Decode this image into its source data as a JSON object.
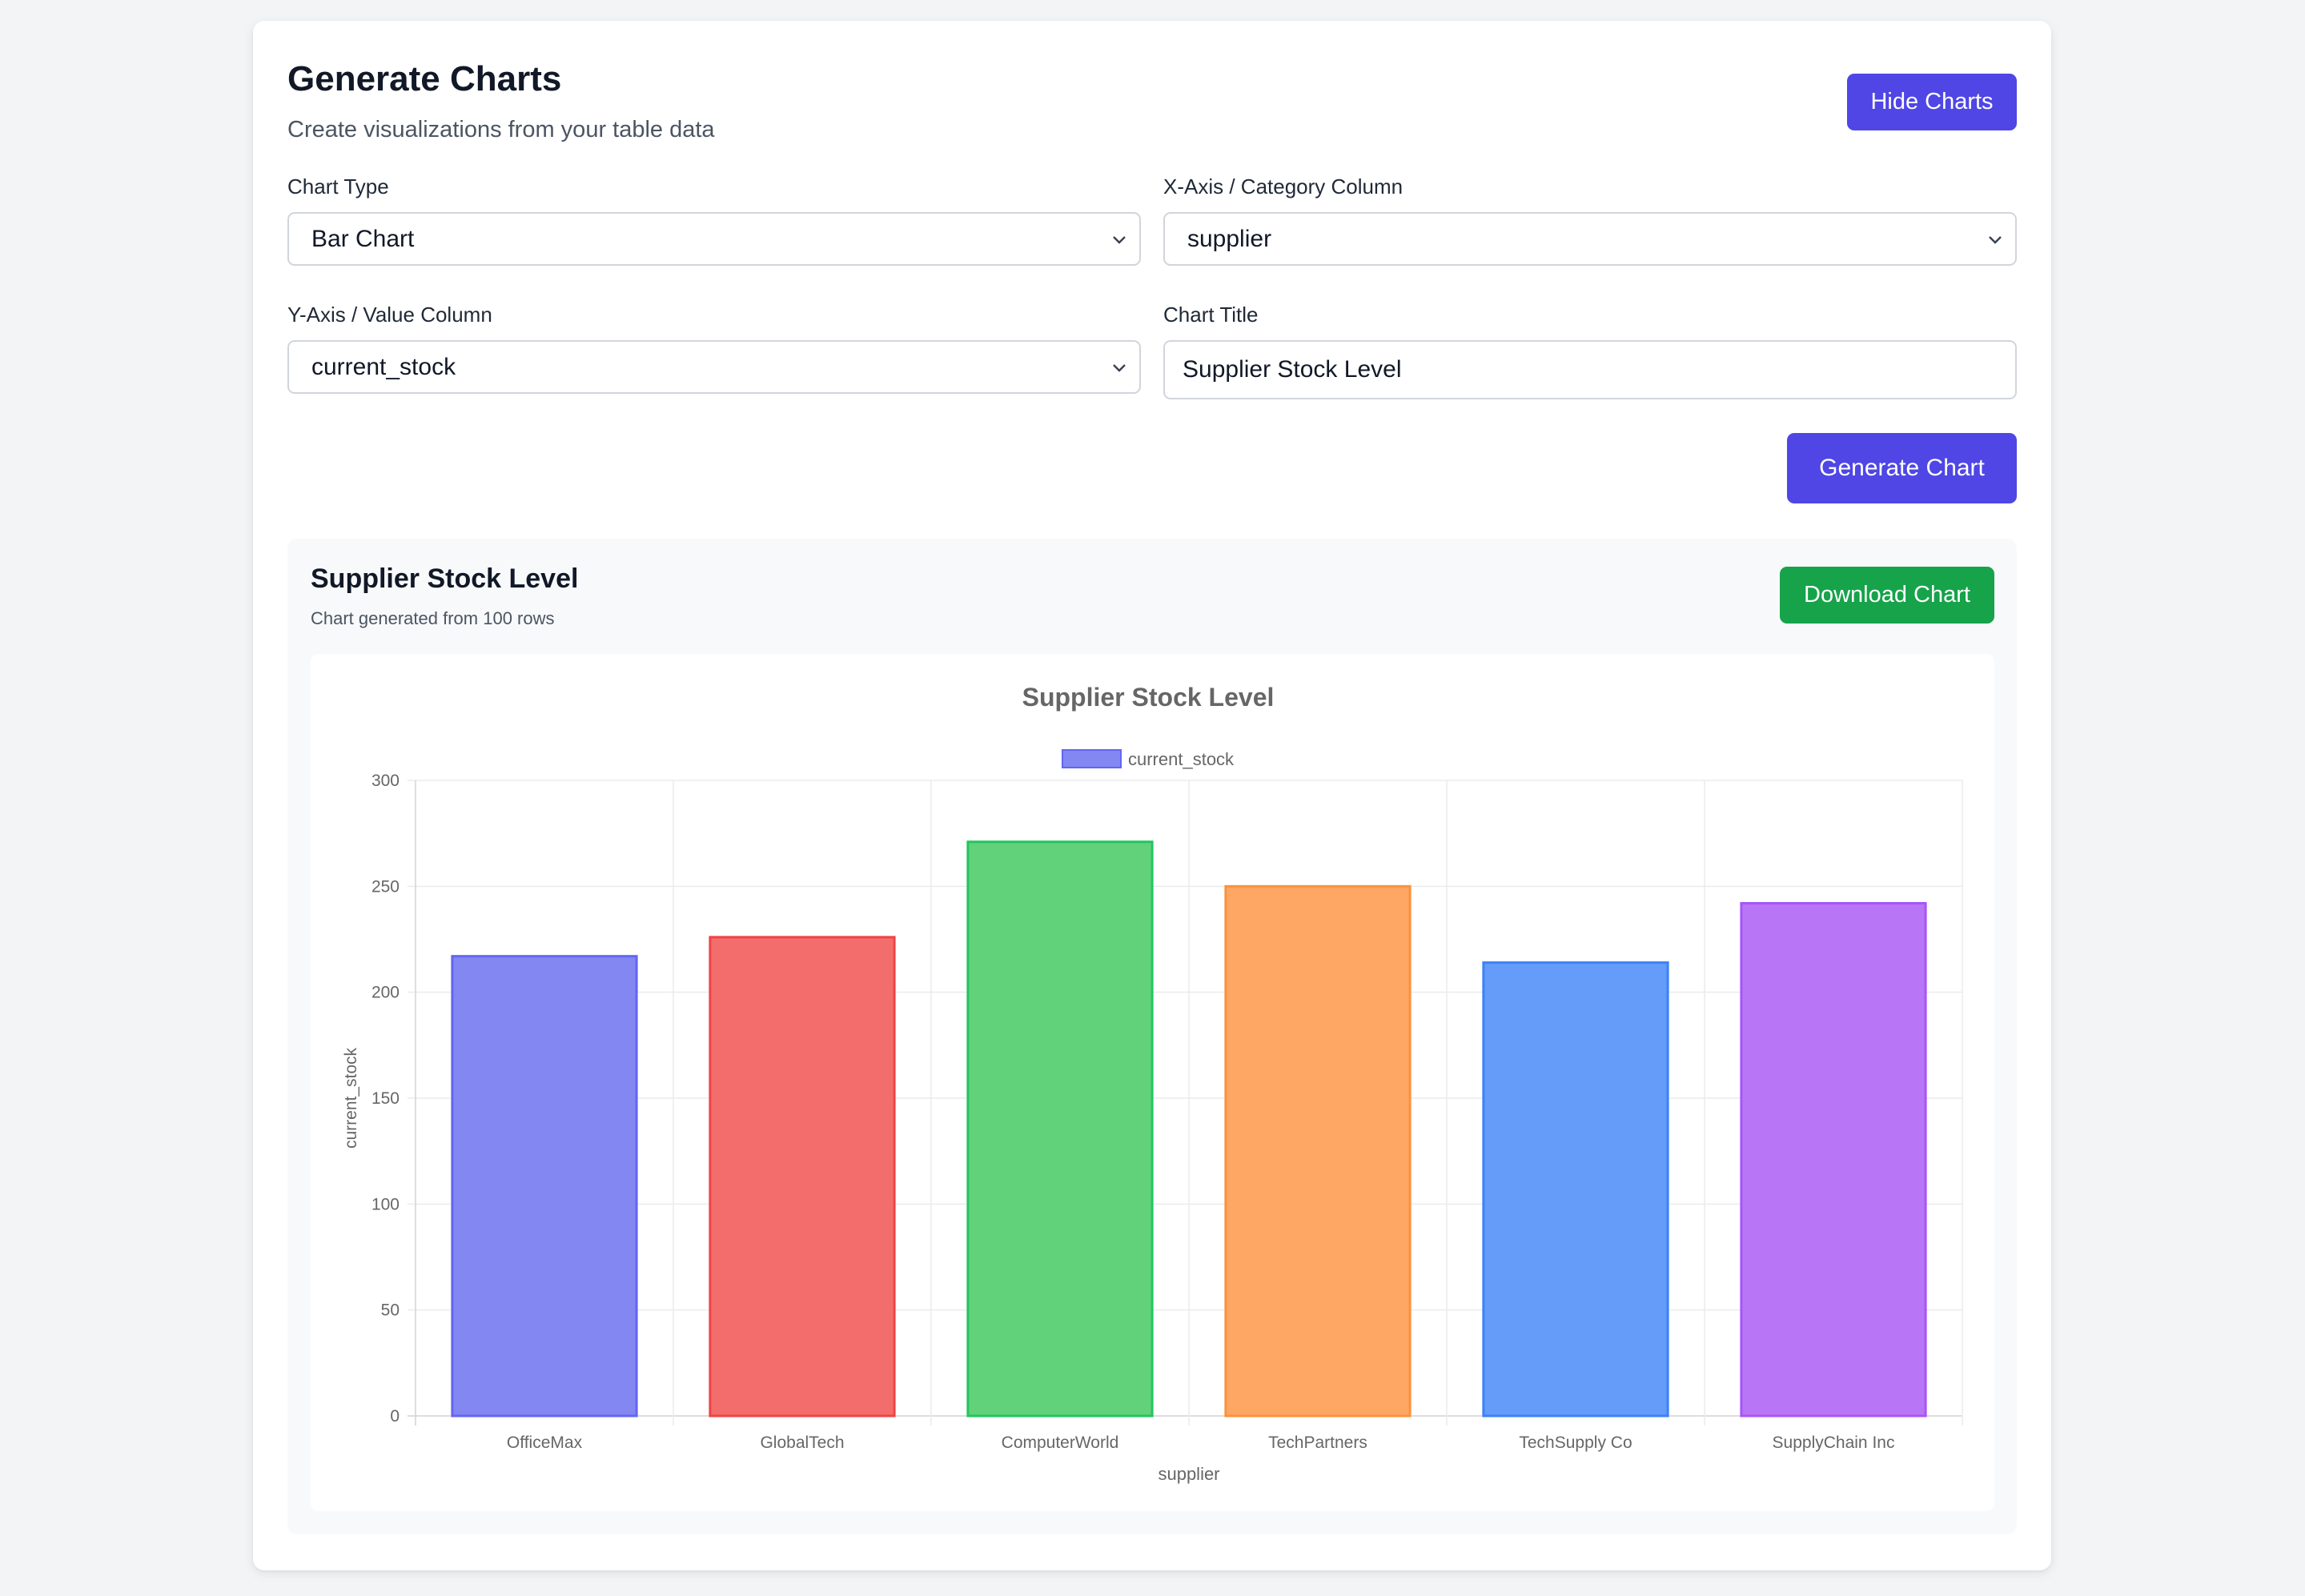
{
  "header": {
    "title": "Generate Charts",
    "subtitle": "Create visualizations from your table data",
    "hide_button": "Hide Charts"
  },
  "form": {
    "chart_type": {
      "label": "Chart Type",
      "value": "Bar Chart"
    },
    "x_axis": {
      "label": "X-Axis / Category Column",
      "value": "supplier"
    },
    "y_axis": {
      "label": "Y-Axis / Value Column",
      "value": "current_stock"
    },
    "chart_title": {
      "label": "Chart Title",
      "value": "Supplier Stock Level"
    },
    "generate_button": "Generate Chart"
  },
  "result": {
    "title": "Supplier Stock Level",
    "subtitle": "Chart generated from 100 rows",
    "download_button": "Download Chart"
  },
  "chart_data": {
    "type": "bar",
    "title": "Supplier Stock Level",
    "xlabel": "supplier",
    "ylabel": "current_stock",
    "legend": "current_stock",
    "legend_position": "top-center",
    "grid": true,
    "ylim": [
      0,
      300
    ],
    "yticks": [
      0,
      50,
      100,
      150,
      200,
      250,
      300
    ],
    "categories": [
      "OfficeMax",
      "GlobalTech",
      "ComputerWorld",
      "TechPartners",
      "TechSupply Co",
      "SupplyChain Inc"
    ],
    "values": [
      217,
      226,
      271,
      250,
      214,
      242
    ],
    "colors": [
      "#8387f2",
      "#f36d6d",
      "#62d27a",
      "#fea664",
      "#659cf9",
      "#b876f6"
    ],
    "borders": [
      "#6366f1",
      "#ef4444",
      "#22c55e",
      "#fb923c",
      "#3b82f6",
      "#a855f7"
    ]
  }
}
